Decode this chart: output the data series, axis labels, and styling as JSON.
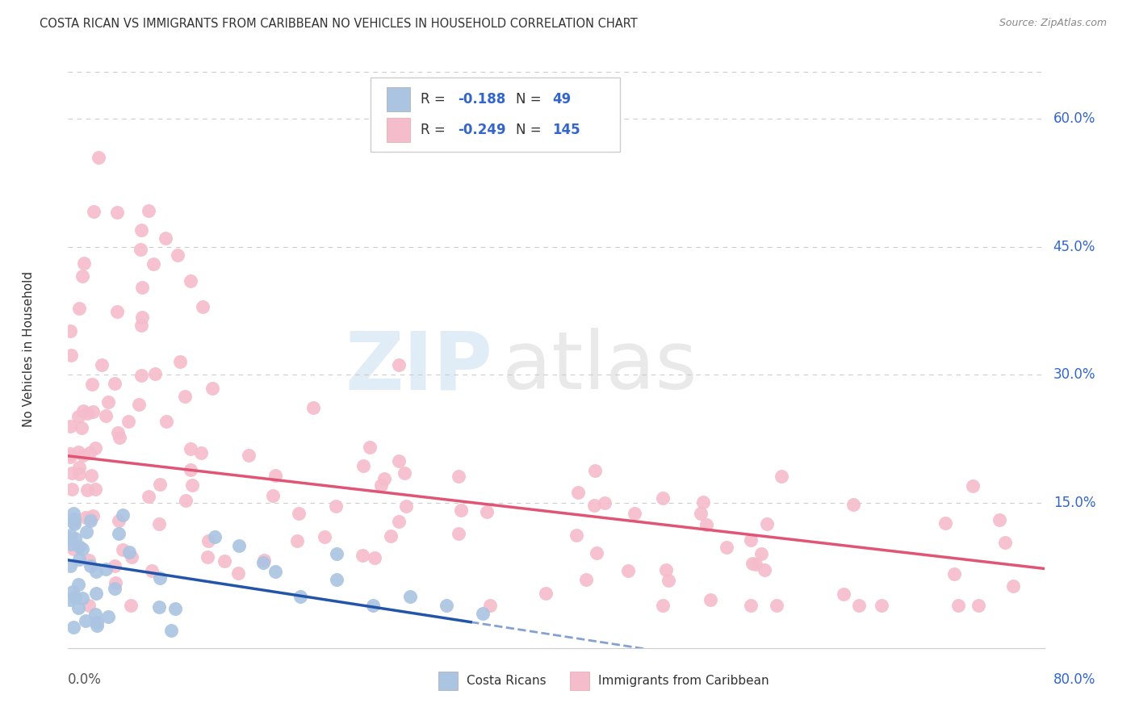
{
  "title": "COSTA RICAN VS IMMIGRANTS FROM CARIBBEAN NO VEHICLES IN HOUSEHOLD CORRELATION CHART",
  "source": "Source: ZipAtlas.com",
  "ylabel": "No Vehicles in Household",
  "ytick_vals": [
    0.15,
    0.3,
    0.45,
    0.6
  ],
  "ytick_labels": [
    "15.0%",
    "30.0%",
    "45.0%",
    "60.0%"
  ],
  "xmin": 0.0,
  "xmax": 0.8,
  "ymin": -0.02,
  "ymax": 0.68,
  "r1_val": "-0.188",
  "n1_val": "49",
  "r2_val": "-0.249",
  "n2_val": "145",
  "blue_color": "#aac4e2",
  "pink_color": "#f5bccb",
  "blue_line_color": "#2255aa",
  "pink_line_color": "#e05575",
  "legend_text_color": "#3366cc",
  "background_color": "#ffffff",
  "grid_color": "#cccccc"
}
